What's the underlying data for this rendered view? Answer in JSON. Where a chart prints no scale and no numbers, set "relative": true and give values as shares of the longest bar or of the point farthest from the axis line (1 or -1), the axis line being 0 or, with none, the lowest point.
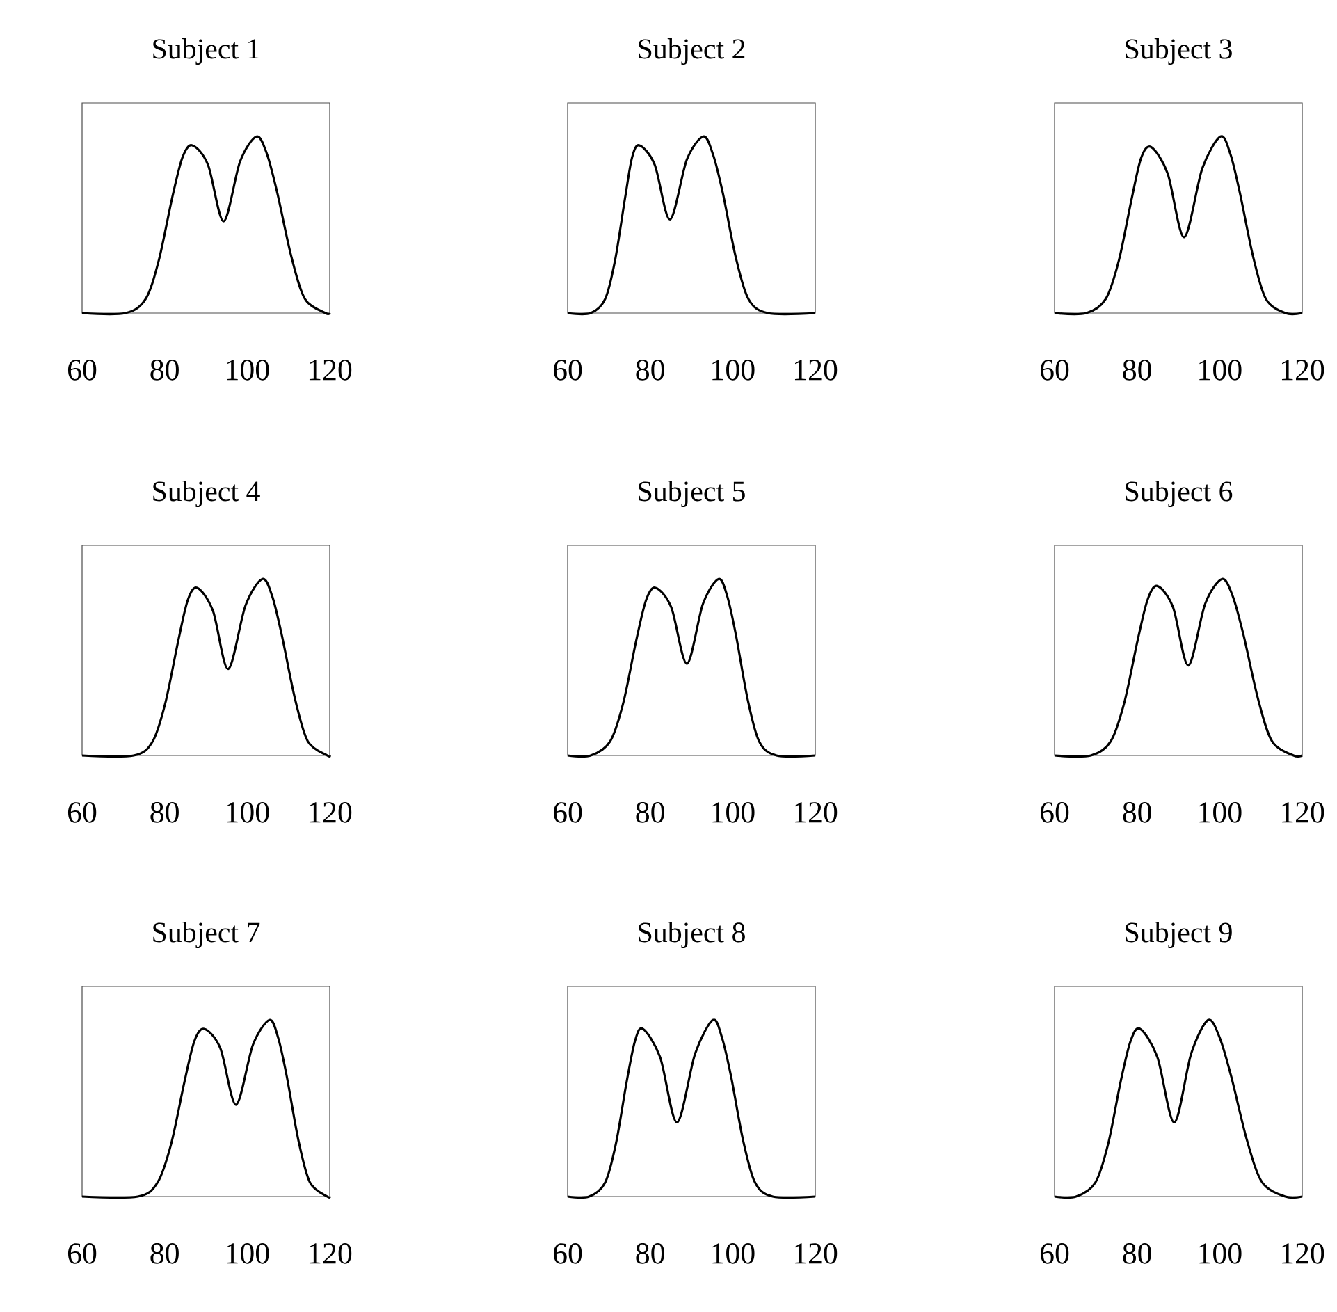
{
  "chart_data": [
    {
      "type": "line",
      "title": "Subject 1",
      "relative": true,
      "xlim": [
        60,
        120
      ],
      "xticks": [
        60,
        80,
        100,
        120
      ],
      "x": [
        60,
        70.5,
        75.4,
        78.6,
        81.8,
        84.3,
        86.7,
        90.5,
        94.3,
        98.3,
        102.3,
        104.8,
        107.3,
        110.7,
        114.0,
        119,
        120
      ],
      "series": [
        {
          "color": "#000000",
          "values": [
            0,
            0,
            0.08,
            0.3,
            0.65,
            0.88,
            0.95,
            0.84,
            0.52,
            0.86,
            1,
            0.9,
            0.68,
            0.32,
            0.08,
            0,
            0
          ]
        }
      ]
    },
    {
      "type": "line",
      "title": "Subject 2",
      "relative": true,
      "xlim": [
        60,
        120
      ],
      "xticks": [
        60,
        80,
        100,
        120
      ],
      "x": [
        60,
        65.6,
        69.1,
        71.5,
        73.9,
        75.6,
        77.4,
        81.1,
        84.8,
        88.9,
        92.9,
        95.2,
        97.6,
        100.7,
        103.8,
        108.5,
        120
      ],
      "series": [
        {
          "color": "#000000",
          "values": [
            0,
            0,
            0.08,
            0.3,
            0.65,
            0.88,
            0.95,
            0.84,
            0.53,
            0.87,
            1,
            0.9,
            0.68,
            0.32,
            0.08,
            0,
            0
          ]
        }
      ]
    },
    {
      "type": "line",
      "title": "Subject 3",
      "relative": true,
      "xlim": [
        60,
        120
      ],
      "xticks": [
        60,
        80,
        100,
        120
      ],
      "x": [
        60,
        67.7,
        72.4,
        75.6,
        78.7,
        81.0,
        83.4,
        87.4,
        91.4,
        95.8,
        100.2,
        102.6,
        104.9,
        108.1,
        111.2,
        115.9,
        120
      ],
      "series": [
        {
          "color": "#000000",
          "values": [
            0,
            0,
            0.08,
            0.3,
            0.65,
            0.88,
            0.94,
            0.79,
            0.43,
            0.82,
            1,
            0.9,
            0.68,
            0.32,
            0.08,
            0,
            0
          ]
        }
      ]
    },
    {
      "type": "line",
      "title": "Subject 4",
      "relative": true,
      "xlim": [
        60,
        120
      ],
      "xticks": [
        60,
        80,
        100,
        120
      ],
      "x": [
        60,
        72.5,
        77.1,
        80.2,
        83.3,
        85.6,
        87.9,
        91.7,
        95.4,
        99.6,
        103.7,
        106.1,
        108.4,
        111.6,
        114.7,
        119.4,
        120
      ],
      "series": [
        {
          "color": "#000000",
          "values": [
            0,
            0,
            0.08,
            0.3,
            0.65,
            0.88,
            0.95,
            0.82,
            0.49,
            0.85,
            1,
            0.9,
            0.68,
            0.32,
            0.08,
            0,
            0
          ]
        }
      ]
    },
    {
      "type": "line",
      "title": "Subject 5",
      "relative": true,
      "xlim": [
        60,
        120
      ],
      "xticks": [
        60,
        80,
        100,
        120
      ],
      "x": [
        60,
        65.6,
        70.3,
        73.5,
        76.6,
        79.0,
        81.3,
        85.1,
        88.9,
        92.8,
        96.6,
        98.7,
        100.8,
        103.6,
        106.4,
        110.6,
        120
      ],
      "series": [
        {
          "color": "#000000",
          "values": [
            0,
            0,
            0.08,
            0.3,
            0.65,
            0.88,
            0.95,
            0.84,
            0.52,
            0.86,
            1,
            0.9,
            0.68,
            0.32,
            0.08,
            0,
            0
          ]
        }
      ]
    },
    {
      "type": "line",
      "title": "Subject 6",
      "relative": true,
      "xlim": [
        60,
        120
      ],
      "xticks": [
        60,
        80,
        100,
        120
      ],
      "x": [
        60,
        68.8,
        73.6,
        76.9,
        80.1,
        82.5,
        84.9,
        88.7,
        92.4,
        96.5,
        100.6,
        103.2,
        105.8,
        109.3,
        112.7,
        117.9,
        120
      ],
      "series": [
        {
          "color": "#000000",
          "values": [
            0,
            0,
            0.08,
            0.3,
            0.65,
            0.88,
            0.96,
            0.84,
            0.51,
            0.86,
            1,
            0.9,
            0.68,
            0.32,
            0.08,
            0,
            0
          ]
        }
      ]
    },
    {
      "type": "line",
      "title": "Subject 7",
      "relative": true,
      "xlim": [
        60,
        120
      ],
      "xticks": [
        60,
        80,
        100,
        120
      ],
      "x": [
        60,
        73.5,
        78.3,
        81.6,
        84.8,
        87.2,
        89.6,
        93.5,
        97.3,
        101.4,
        105.4,
        107.5,
        109.6,
        112.4,
        115.2,
        119.4,
        120
      ],
      "series": [
        {
          "color": "#000000",
          "values": [
            0,
            0,
            0.08,
            0.3,
            0.65,
            0.88,
            0.95,
            0.84,
            0.52,
            0.86,
            1,
            0.9,
            0.68,
            0.32,
            0.08,
            0,
            0
          ]
        }
      ]
    },
    {
      "type": "line",
      "title": "Subject 8",
      "relative": true,
      "xlim": [
        60,
        120
      ],
      "xticks": [
        60,
        80,
        100,
        120
      ],
      "x": [
        60,
        65.2,
        69.1,
        71.7,
        74.3,
        76.3,
        78.2,
        82.4,
        86.5,
        90.9,
        95.2,
        97.4,
        99.6,
        102.5,
        105.4,
        109.7,
        120
      ],
      "series": [
        {
          "color": "#000000",
          "values": [
            0,
            0,
            0.08,
            0.3,
            0.65,
            0.88,
            0.95,
            0.79,
            0.42,
            0.81,
            1,
            0.9,
            0.68,
            0.32,
            0.08,
            0,
            0
          ]
        }
      ]
    },
    {
      "type": "line",
      "title": "Subject 9",
      "relative": true,
      "xlim": [
        60,
        120
      ],
      "xticks": [
        60,
        80,
        100,
        120
      ],
      "x": [
        60,
        65.2,
        69.9,
        73.0,
        76.0,
        78.4,
        80.7,
        84.9,
        89.0,
        93.1,
        97.2,
        100.0,
        102.8,
        106.6,
        110.3,
        115.9,
        120
      ],
      "series": [
        {
          "color": "#000000",
          "values": [
            0,
            0,
            0.08,
            0.3,
            0.65,
            0.88,
            0.95,
            0.79,
            0.42,
            0.81,
            1,
            0.9,
            0.68,
            0.32,
            0.08,
            0,
            0
          ]
        }
      ]
    }
  ]
}
